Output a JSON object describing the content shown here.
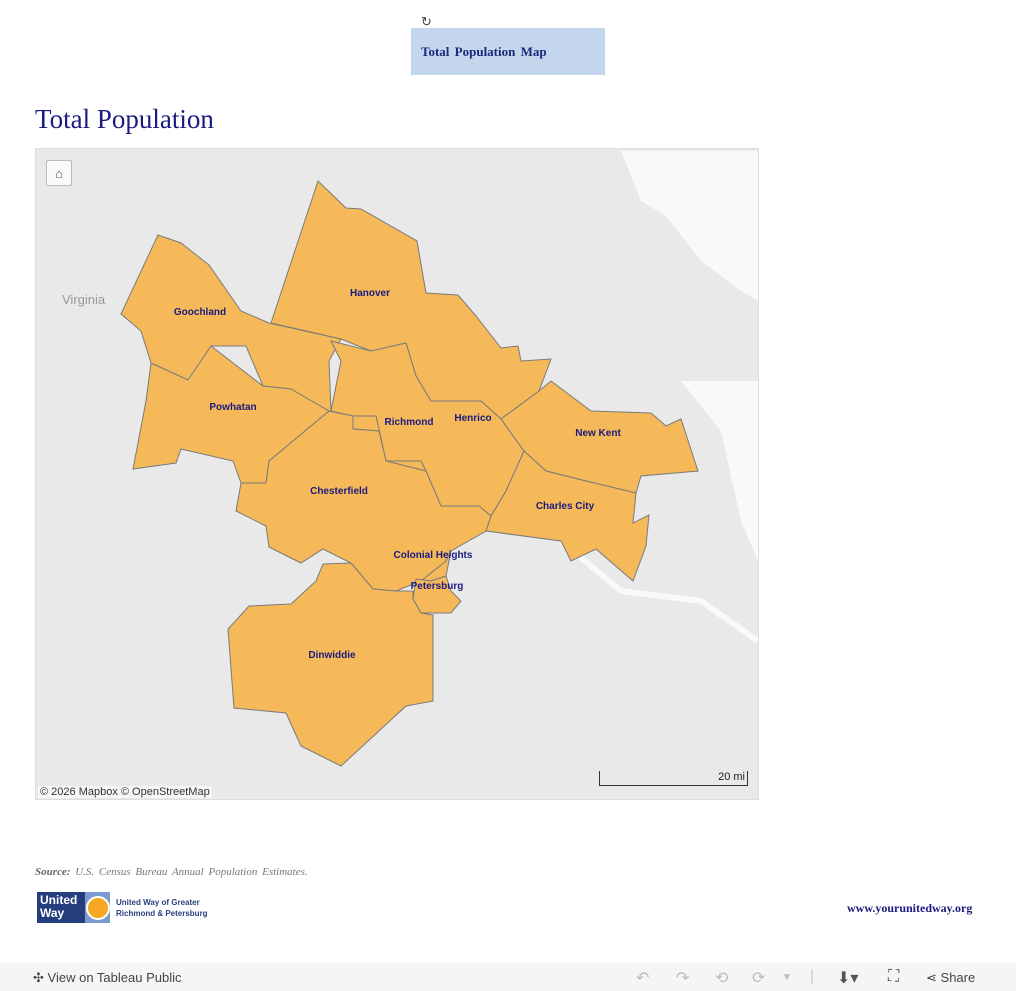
{
  "toolbar_top": {
    "refresh_icon": "refresh-icon",
    "tab_label": "Total Population Map"
  },
  "title": "Total Population",
  "map": {
    "region_label": "Virginia",
    "attribution": "© 2026 Mapbox  © OpenStreetMap",
    "scale_label": "20 mi",
    "fill_color": "#f5b95a",
    "counties": [
      "Goochland",
      "Hanover",
      "Powhatan",
      "Richmond",
      "Henrico",
      "New Kent",
      "Chesterfield",
      "Charles City",
      "Colonial Heights",
      "Petersburg",
      "Dinwiddie"
    ]
  },
  "footer": {
    "source_label": "Source:",
    "source_text": "U.S. Census Bureau Annual Population Estimates.",
    "logo_text": "United Way",
    "logo_org_line1": "United Way of Greater",
    "logo_org_line2": "Richmond & Petersburg",
    "url": "www.yourunitedway.org"
  },
  "bottom_bar": {
    "view_label": "View on Tableau Public",
    "share_label": "Share"
  }
}
